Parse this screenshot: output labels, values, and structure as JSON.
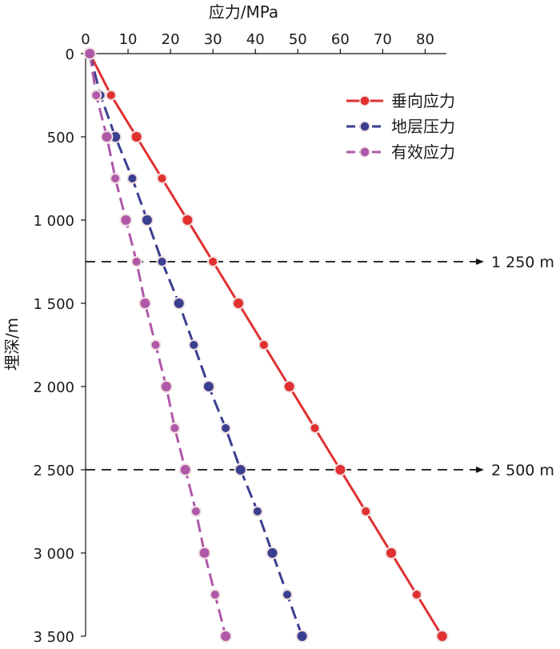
{
  "chart_data": {
    "type": "line",
    "xlabel": "应力/MPa",
    "ylabel": "埋深/m",
    "xlim": [
      0,
      85
    ],
    "ylim": [
      0,
      3500
    ],
    "x_axis_position": "top",
    "y_inverted": true,
    "x_ticks": [
      0,
      10,
      20,
      30,
      40,
      50,
      60,
      70,
      80
    ],
    "x_tick_labels": [
      "0",
      "10",
      "20",
      "30",
      "40",
      "50",
      "60",
      "70",
      "80"
    ],
    "y_ticks": [
      0,
      500,
      1000,
      1500,
      2000,
      2500,
      3000,
      3500
    ],
    "y_tick_labels": [
      "0",
      "500",
      "1 000",
      "1 500",
      "2 000",
      "2 500",
      "3 000",
      "3 500"
    ],
    "grid": false,
    "legend_position": "top-right",
    "series": [
      {
        "name": "垂向应力",
        "color": "#e03030",
        "points": [
          [
            1,
            0
          ],
          [
            6,
            250
          ],
          [
            12,
            500
          ],
          [
            18,
            750
          ],
          [
            24,
            1000
          ],
          [
            30,
            1250
          ],
          [
            36,
            1500
          ],
          [
            42,
            1750
          ],
          [
            48,
            2000
          ],
          [
            54,
            2250
          ],
          [
            60,
            2500
          ],
          [
            66,
            2750
          ],
          [
            72,
            3000
          ],
          [
            78,
            3250
          ],
          [
            84,
            3500
          ]
        ]
      },
      {
        "name": "地层压力",
        "color": "#3a3f8f",
        "points": [
          [
            1,
            0
          ],
          [
            3.5,
            250
          ],
          [
            7,
            500
          ],
          [
            11,
            750
          ],
          [
            14.5,
            1000
          ],
          [
            18,
            1250
          ],
          [
            22,
            1500
          ],
          [
            25.5,
            1750
          ],
          [
            29,
            2000
          ],
          [
            33,
            2250
          ],
          [
            36.5,
            2500
          ],
          [
            40.5,
            2750
          ],
          [
            44,
            3000
          ],
          [
            47.5,
            3250
          ],
          [
            51,
            3500
          ]
        ]
      },
      {
        "name": "有效应力",
        "color": "#b058a8",
        "points": [
          [
            1,
            0
          ],
          [
            2.5,
            250
          ],
          [
            5,
            500
          ],
          [
            7,
            750
          ],
          [
            9.5,
            1000
          ],
          [
            12,
            1250
          ],
          [
            14,
            1500
          ],
          [
            16.5,
            1750
          ],
          [
            19,
            2000
          ],
          [
            21,
            2250
          ],
          [
            23.5,
            2500
          ],
          [
            26,
            2750
          ],
          [
            28,
            3000
          ],
          [
            30.5,
            3250
          ],
          [
            33,
            3500
          ]
        ]
      }
    ],
    "annotations": [
      {
        "label": "1 250 m",
        "depth": 1250,
        "style": "dashed-arrow"
      },
      {
        "label": "2 500 m",
        "depth": 2500,
        "style": "dashed-arrow"
      }
    ]
  }
}
